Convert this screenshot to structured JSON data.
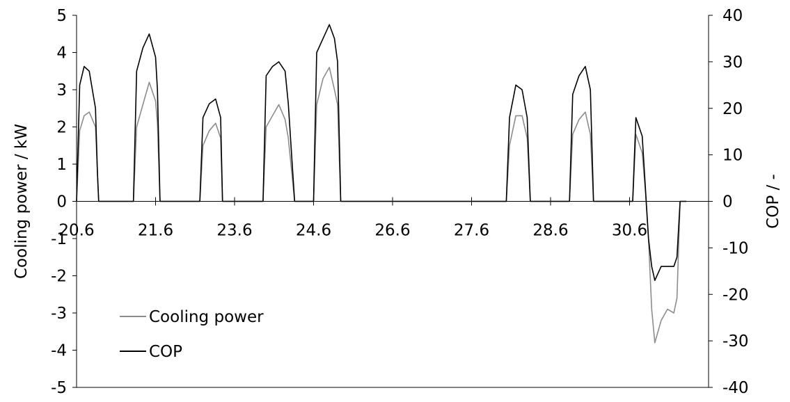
{
  "chart_data": {
    "type": "line",
    "title": "",
    "x_tick_labels": [
      "20.6",
      "21.6",
      "23.6",
      "24.6",
      "26.6",
      "27.6",
      "28.6",
      "30.6"
    ],
    "y_left": {
      "label": "Cooling power / kW",
      "ylim": [
        -5,
        5
      ],
      "ticks": [
        "5",
        "4",
        "3",
        "2",
        "1",
        "0",
        "-1",
        "-2",
        "-3",
        "-4",
        "-5"
      ]
    },
    "y_right": {
      "label": "COP / -",
      "ylim": [
        -40,
        40
      ],
      "ticks": [
        "40",
        "30",
        "20",
        "10",
        "0",
        "-10",
        "-20",
        "-30",
        "-40"
      ]
    },
    "grid": false,
    "legend_position": "lower-left",
    "series": [
      {
        "name": "Cooling power",
        "axis": "left",
        "color": "#8c8c8c",
        "x": [
          0.0,
          0.05,
          0.12,
          0.2,
          0.3,
          0.33,
          0.35,
          0.42,
          0.9,
          0.95,
          1.05,
          1.15,
          1.25,
          1.28,
          1.32,
          1.45,
          1.95,
          2.0,
          2.1,
          2.2,
          2.28,
          2.31,
          2.45,
          2.95,
          3.0,
          3.1,
          3.2,
          3.3,
          3.35,
          3.45,
          3.55,
          3.75,
          3.8,
          3.9,
          4.0,
          4.08,
          4.13,
          4.18,
          4.3,
          6.8,
          6.85,
          6.95,
          7.05,
          7.13,
          7.18,
          7.3,
          7.8,
          7.85,
          7.95,
          8.05,
          8.13,
          8.18,
          8.3,
          8.8,
          8.85,
          8.95,
          9.0,
          9.05,
          9.1,
          9.15,
          9.25,
          9.35,
          9.45,
          9.5,
          9.55,
          9.65
        ],
        "y": [
          0,
          1.9,
          2.3,
          2.4,
          2.0,
          0.8,
          0,
          0,
          0,
          2.0,
          2.6,
          3.2,
          2.7,
          2.1,
          0,
          0,
          0,
          1.5,
          1.9,
          2.1,
          1.7,
          0,
          0,
          0,
          2.0,
          2.3,
          2.6,
          2.2,
          1.7,
          0,
          0,
          0,
          2.6,
          3.3,
          3.6,
          3.0,
          2.6,
          0,
          0,
          0,
          1.5,
          2.3,
          2.3,
          1.7,
          0,
          0,
          0,
          1.8,
          2.2,
          2.4,
          1.8,
          0,
          0,
          0,
          1.8,
          1.3,
          0.3,
          -1.0,
          -2.9,
          -3.8,
          -3.2,
          -2.9,
          -3.0,
          -2.6,
          0,
          0
        ]
      },
      {
        "name": "COP",
        "axis": "right",
        "color": "#000000",
        "x": [
          0.0,
          0.05,
          0.12,
          0.2,
          0.3,
          0.33,
          0.35,
          0.42,
          0.9,
          0.95,
          1.05,
          1.15,
          1.25,
          1.28,
          1.32,
          1.45,
          1.95,
          2.0,
          2.1,
          2.2,
          2.28,
          2.31,
          2.45,
          2.95,
          3.0,
          3.1,
          3.2,
          3.3,
          3.35,
          3.45,
          3.55,
          3.75,
          3.8,
          3.9,
          4.0,
          4.08,
          4.13,
          4.18,
          4.3,
          6.8,
          6.85,
          6.95,
          7.05,
          7.13,
          7.18,
          7.3,
          7.8,
          7.85,
          7.95,
          8.05,
          8.13,
          8.18,
          8.3,
          8.8,
          8.85,
          8.95,
          9.0,
          9.05,
          9.1,
          9.15,
          9.25,
          9.35,
          9.45,
          9.5,
          9.55,
          9.65
        ],
        "y": [
          0,
          25,
          29,
          28,
          20,
          6,
          0,
          0,
          0,
          28,
          33,
          36,
          31,
          24,
          0,
          0,
          0,
          18,
          21,
          22,
          18,
          0,
          0,
          0,
          27,
          29,
          30,
          28,
          21,
          0,
          0,
          0,
          32,
          35,
          38,
          35,
          30,
          0,
          0,
          0,
          18,
          25,
          24,
          18,
          0,
          0,
          0,
          23,
          27,
          29,
          24,
          0,
          0,
          0,
          18,
          14,
          3,
          -8,
          -14,
          -17,
          -14,
          -14,
          -14,
          -12,
          0,
          0
        ]
      }
    ]
  }
}
